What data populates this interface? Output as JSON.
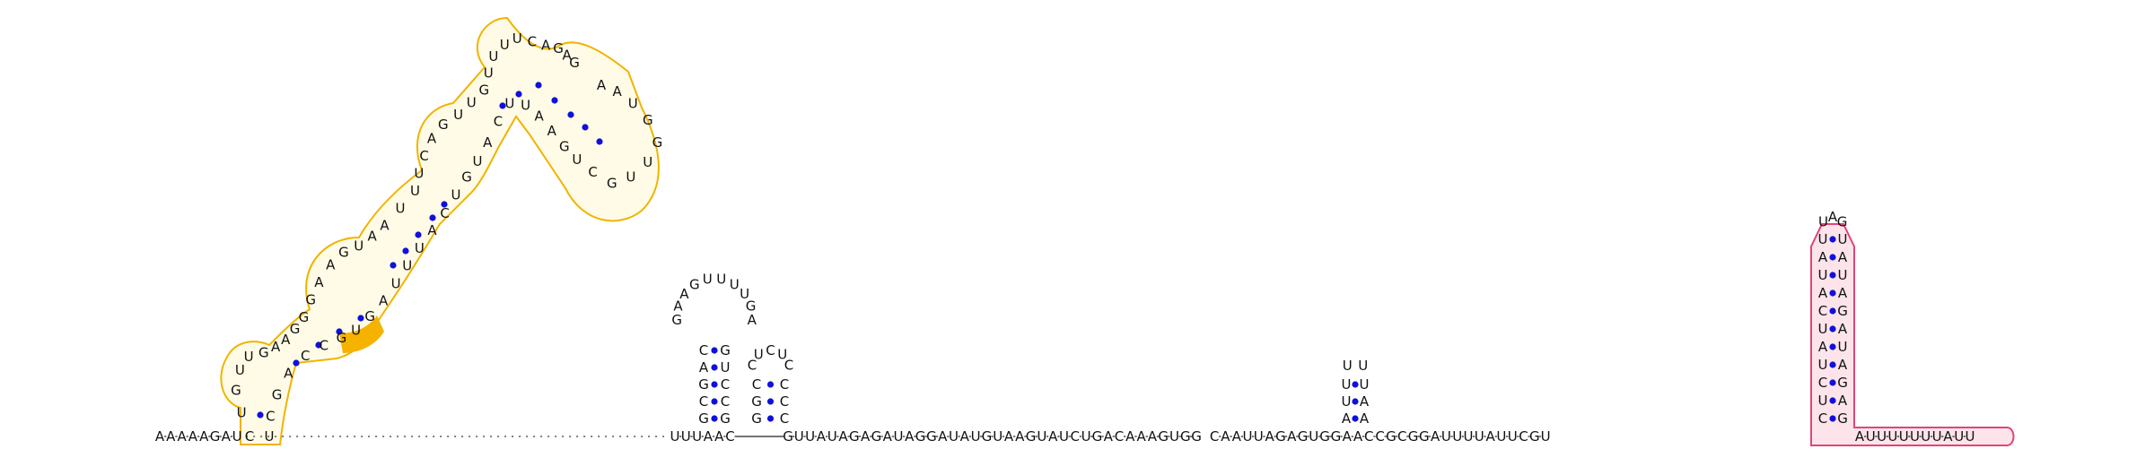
{
  "colors": {
    "highlight_yellow": "#f0b400",
    "highlight_yellow_fill": "#fffbe6",
    "highlight_pink": "#e0447a",
    "highlight_pink_fill": "#fde4ea",
    "base_pair_dot": "#1010dd"
  },
  "backbone": {
    "leader": [
      "A",
      "A",
      "A",
      "A",
      "A",
      "G",
      "A",
      "U"
    ],
    "middle_a": [
      "U",
      "U",
      "U",
      "A",
      "A",
      "C"
    ],
    "middle_b": [
      "G",
      "U",
      "U",
      "A",
      "U",
      "A",
      "G",
      "A",
      "G",
      "A",
      "U",
      "A",
      "G",
      "G",
      "A",
      "U",
      "A",
      "U",
      "G",
      "U",
      "A",
      "A",
      "G",
      "U",
      "A",
      "U",
      "C",
      "U",
      "G",
      "A",
      "C",
      "A",
      "A",
      "A",
      "G",
      "U",
      "G",
      "G"
    ],
    "middle_c": [
      "C",
      "A",
      "A",
      "U",
      "U",
      "A",
      "G",
      "A",
      "G",
      "U",
      "G",
      "G",
      "A",
      "A",
      "C",
      "C",
      "G",
      "C",
      "G",
      "G",
      "A",
      "U",
      "U",
      "U",
      "U",
      "A",
      "U",
      "U",
      "C",
      "G",
      "U"
    ],
    "trailer": [
      "A",
      "U",
      "U",
      "U",
      "U",
      "U",
      "U",
      "U",
      "A",
      "U",
      "U"
    ]
  },
  "hairpin_1": {
    "left": [
      "G",
      "C",
      "G",
      "A",
      "C"
    ],
    "loop": [
      "G",
      "A",
      "A",
      "G",
      "U",
      "U",
      "U",
      "U",
      "G",
      "A"
    ],
    "right": [
      "G",
      "U",
      "C",
      "C",
      "G"
    ]
  },
  "hairpin_2": {
    "left": [
      "G",
      "G",
      "C"
    ],
    "loop": [
      "C",
      "U",
      "C",
      "U",
      "C"
    ],
    "right": [
      "C",
      "C",
      "C"
    ]
  },
  "hairpin_3": {
    "left": [
      "A",
      "U",
      "U"
    ],
    "loop": [
      "U",
      "U"
    ],
    "right": [
      "U",
      "A",
      "A"
    ]
  },
  "terminator": {
    "left": [
      "C",
      "U",
      "C",
      "U",
      "A",
      "U",
      "C",
      "A",
      "U",
      "A",
      "U"
    ],
    "loop": [
      "U",
      "A",
      "G"
    ],
    "right": [
      "U",
      "A",
      "U",
      "A",
      "G",
      "A",
      "U",
      "A",
      "G",
      "A",
      "G"
    ]
  },
  "large_structure": {
    "path_a": [
      "C",
      "U",
      "G",
      "U",
      "U",
      "G",
      "A",
      "A",
      "G",
      "G",
      "G",
      "A",
      "A",
      "G",
      "U",
      "A",
      "A",
      "U",
      "U",
      "U",
      "C",
      "A",
      "G",
      "U",
      "U",
      "G",
      "U",
      "U",
      "U",
      "U",
      "C",
      "A",
      "G",
      "A",
      "G"
    ],
    "path_b": [
      "U",
      "C",
      "G",
      "A",
      "C",
      "C",
      "G",
      "U",
      "G",
      "A",
      "U",
      "U",
      "U",
      "A",
      "C",
      "U",
      "G",
      "U",
      "A",
      "C",
      "U",
      "U",
      "A",
      "A",
      "G",
      "U",
      "C",
      "G",
      "U",
      "U",
      "G",
      "G",
      "U",
      "A",
      "A"
    ],
    "highlighted": [
      "A",
      "C",
      "G",
      "U"
    ]
  }
}
